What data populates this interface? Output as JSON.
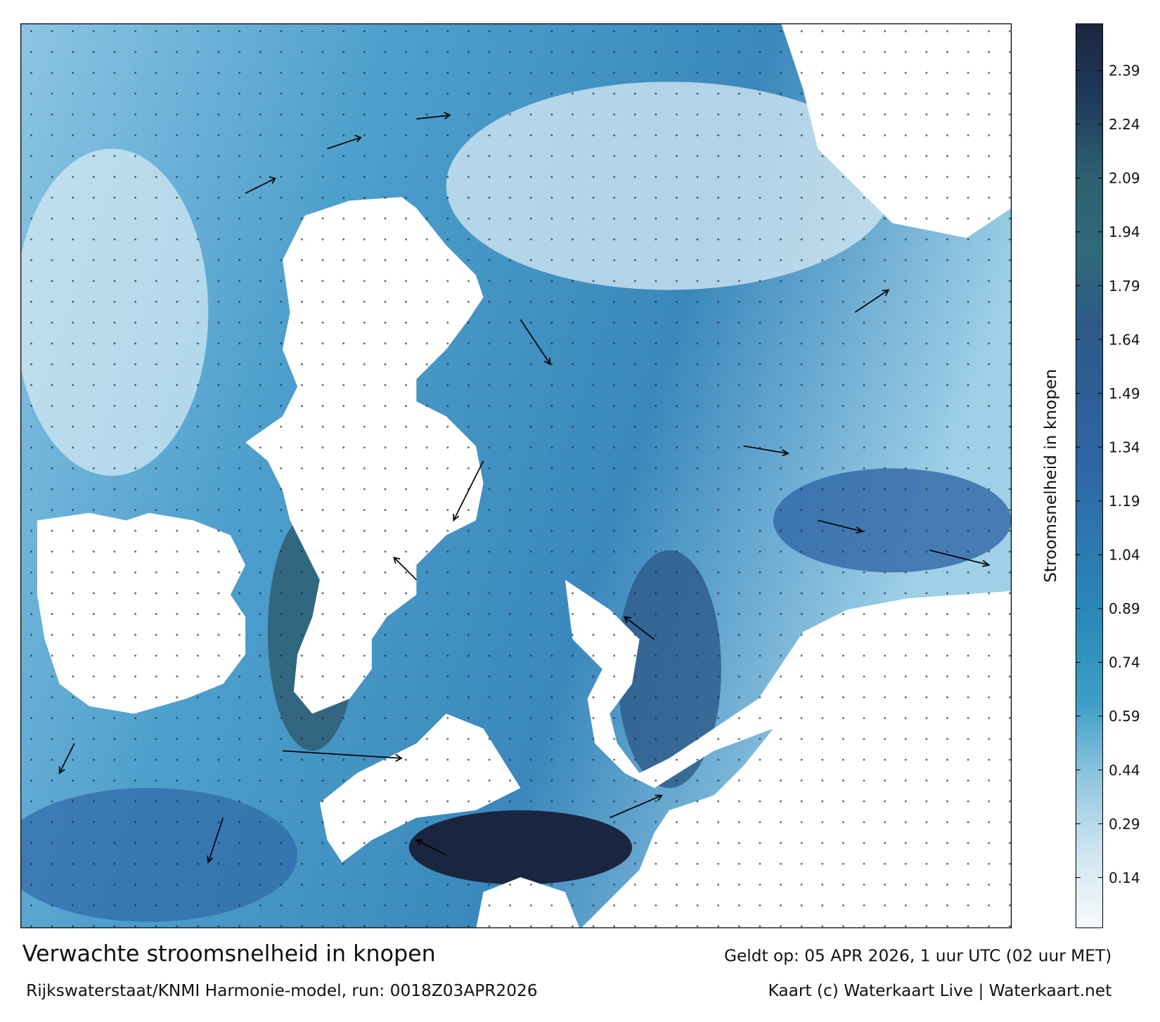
{
  "header": {
    "title": "Verwachte stroomsnelheid in knopen",
    "valid": "Geldt op: 05 APR 2026, 1 uur UTC (02 uur MET)"
  },
  "footer": {
    "source": "Rijkswaterstaat/KNMI Harmonie-model, run: 0018Z03APR2026",
    "credit": "Kaart (c) Waterkaart Live | Waterkaart.net"
  },
  "colorbar": {
    "label": "Stroomsnelheid in knopen",
    "lim": [
      0,
      2.52
    ],
    "ticks": [
      0.14,
      0.29,
      0.44,
      0.59,
      0.74,
      0.89,
      1.04,
      1.19,
      1.34,
      1.49,
      1.64,
      1.79,
      1.94,
      2.09,
      2.24,
      2.39
    ],
    "colors": [
      "#f7fbfd",
      "#cfe5f0",
      "#8fc6df",
      "#3d9ec6",
      "#2a8cb8",
      "#2b7bae",
      "#2f68a6",
      "#2d5f96",
      "#2c5a88",
      "#2f6a78",
      "#2d6070",
      "#1f3a5a",
      "#1a2640"
    ]
  }
}
